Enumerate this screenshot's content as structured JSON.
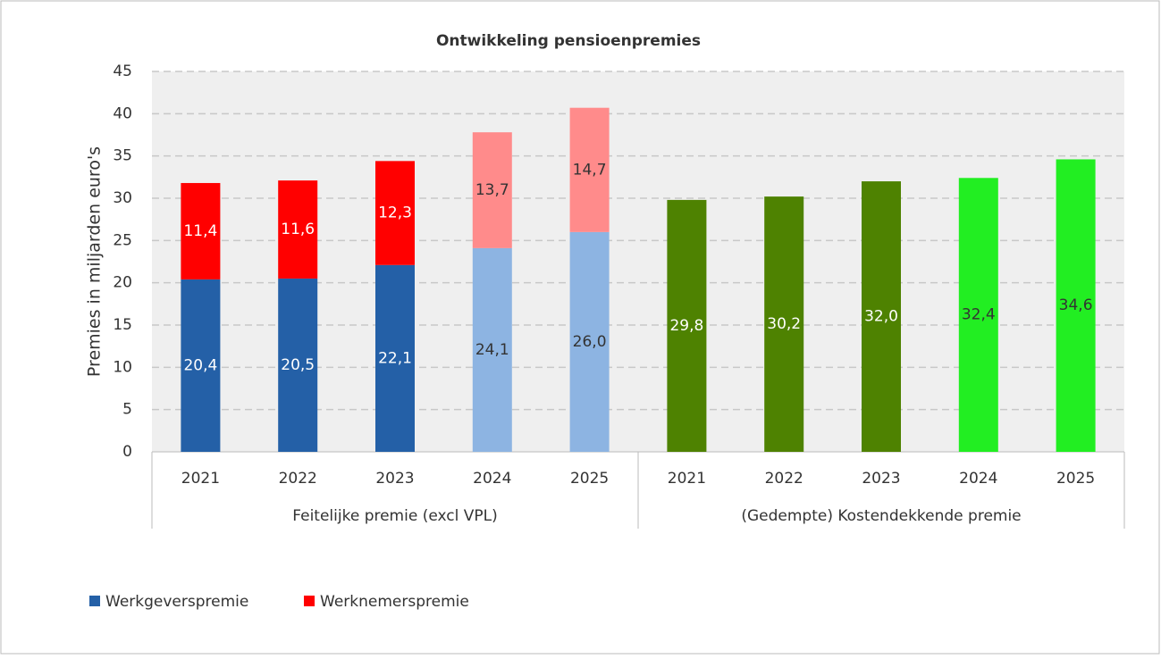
{
  "chart_data": {
    "type": "stacked-bar",
    "title": "Ontwikkeling pensioenpremies",
    "ylabel": "Premies in miljarden euro's",
    "groups": [
      {
        "label": "Feitelijke premie (excl VPL)",
        "categories": [
          "2021",
          "2022",
          "2023",
          "2024",
          "2025"
        ]
      },
      {
        "label": "(Gedempte) Kostendekkende premie",
        "categories": [
          "2021",
          "2022",
          "2023",
          "2024",
          "2025"
        ]
      }
    ],
    "series": [
      {
        "name": "Werkgeverspremie",
        "color": "#2460A7",
        "colors": [
          "#2460A7",
          "#2460A7",
          "#2460A7",
          "#8DB4E2",
          "#8DB4E2",
          null,
          null,
          null,
          null,
          null
        ],
        "values": [
          20.4,
          20.5,
          22.1,
          24.1,
          26.0,
          null,
          null,
          null,
          null,
          null
        ],
        "value_labels": [
          "20,4",
          "20,5",
          "22,1",
          "24,1",
          "26,0",
          null,
          null,
          null,
          null,
          null
        ]
      },
      {
        "name": "Werknemerspremie",
        "color": "#FF0000",
        "colors": [
          "#FF0000",
          "#FF0000",
          "#FF0000",
          "#FF8B8B",
          "#FF8B8B",
          null,
          null,
          null,
          null,
          null
        ],
        "values": [
          11.4,
          11.6,
          12.3,
          13.7,
          14.7,
          null,
          null,
          null,
          null,
          null
        ],
        "value_labels": [
          "11,4",
          "11,6",
          "12,3",
          "13,7",
          "14,7",
          null,
          null,
          null,
          null,
          null
        ]
      },
      {
        "color": "#4E8201",
        "colors": [
          null,
          null,
          null,
          null,
          null,
          "#4E8201",
          "#4E8201",
          "#4E8201",
          "#22EE22",
          "#22EE22"
        ],
        "values": [
          null,
          null,
          null,
          null,
          null,
          29.8,
          30.2,
          32.0,
          32.4,
          34.6
        ],
        "value_labels": [
          null,
          null,
          null,
          null,
          null,
          "29,8",
          "30,2",
          "32,0",
          "32,4",
          "34,6"
        ]
      }
    ],
    "ylim": [
      0,
      45
    ],
    "yticks": [
      0,
      5,
      10,
      15,
      20,
      25,
      30,
      35,
      40,
      45
    ],
    "grid": true,
    "legend": "bottom-left"
  }
}
